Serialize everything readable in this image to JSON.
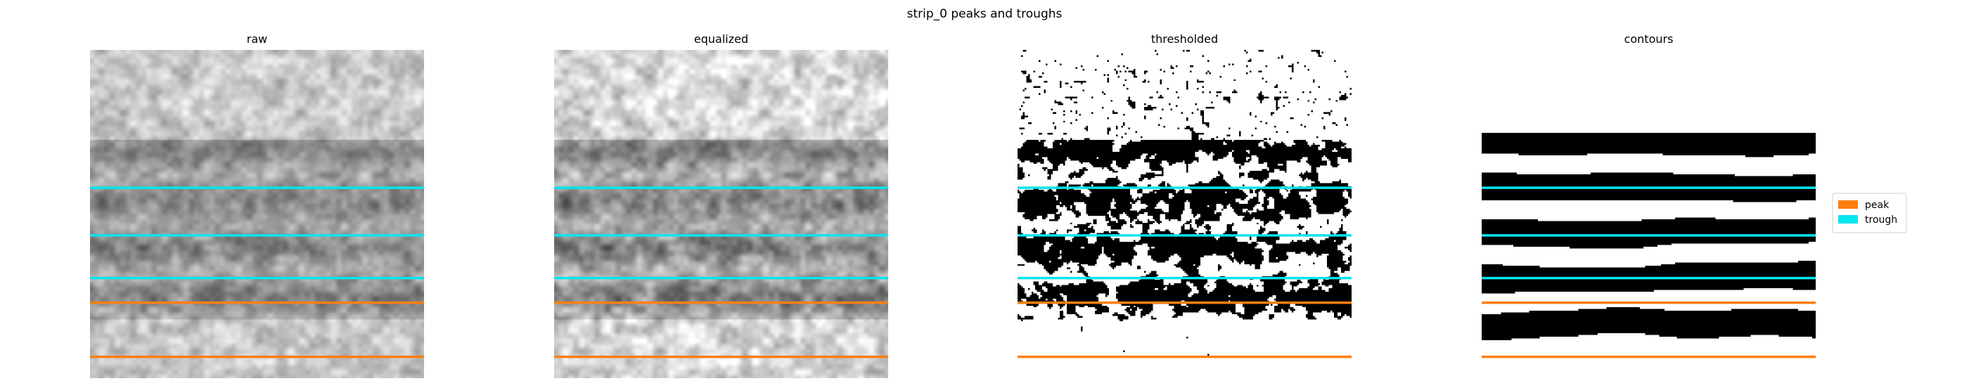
{
  "title": "strip_0 peaks and troughs",
  "colors": {
    "peak": "#ff7f0e",
    "trough": "#00e5ee"
  },
  "chart_data": {
    "type": "image",
    "title": "strip_0 peaks and troughs",
    "panels": [
      {
        "name": "raw",
        "title": "raw",
        "render": "grayscale",
        "contrast": 1.0
      },
      {
        "name": "equalized",
        "title": "equalized",
        "render": "grayscale",
        "contrast": 1.25
      },
      {
        "name": "thresholded",
        "title": "thresholded",
        "render": "binary-noisy"
      },
      {
        "name": "contours",
        "title": "contours",
        "render": "binary-smooth"
      }
    ],
    "image_rows": 100,
    "line_rows": {
      "trough": [
        42,
        56.5,
        69.5
      ],
      "peak": [
        77,
        93.5
      ]
    },
    "legend": [
      {
        "label": "peak",
        "key": "peak"
      },
      {
        "label": "trough",
        "key": "trough"
      }
    ]
  }
}
